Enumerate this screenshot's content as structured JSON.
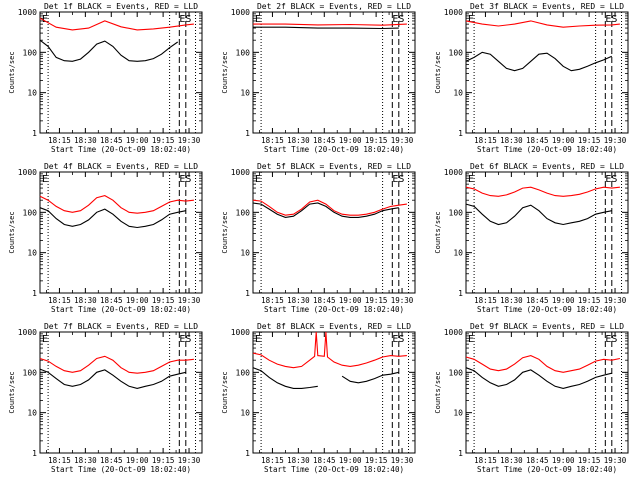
{
  "chart_data": [
    {
      "type": "line",
      "title": "Det 1f BLACK = Events, RED = LLD",
      "xlabel": "Start Time (20-Oct-09 18:02:40)",
      "ylabel": "Counts/sec",
      "ylim": [
        1,
        1000
      ],
      "yscale": "log",
      "x_tick_labels": [
        "18:15",
        "18:30",
        "18:45",
        "19:00",
        "19:15",
        "19:30"
      ],
      "y_tick_labels": [
        "1",
        "10",
        "100",
        "1000"
      ],
      "corner_labels": [
        "E",
        "ES"
      ],
      "series": [
        {
          "color": "#000000",
          "x": [
            0,
            5,
            10,
            15,
            20,
            25,
            30,
            35,
            40,
            45,
            50,
            55,
            60,
            65,
            70,
            75,
            80,
            85,
            90,
            95
          ],
          "y": [
            200,
            140,
            75,
            62,
            60,
            68,
            100,
            160,
            190,
            140,
            85,
            62,
            60,
            62,
            70,
            90,
            130,
            180,
            "",
            ""
          ]
        },
        {
          "color": "#ff0000",
          "x": [
            0,
            10,
            20,
            30,
            40,
            50,
            60,
            70,
            80,
            90,
            95
          ],
          "y": [
            700,
            420,
            360,
            400,
            600,
            430,
            360,
            380,
            420,
            480,
            500
          ]
        }
      ]
    },
    {
      "type": "line",
      "title": "Det 2f BLACK = Events, RED = LLD",
      "xlabel": "Start Time (20-Oct-09 18:02:40)",
      "ylabel": "Counts/sec",
      "ylim": [
        1,
        1000
      ],
      "yscale": "log",
      "x_tick_labels": [
        "18:15",
        "18:30",
        "18:45",
        "19:00",
        "19:15",
        "19:30"
      ],
      "y_tick_labels": [
        "1",
        "10",
        "100",
        "1000"
      ],
      "corner_labels": [
        "E",
        "ES"
      ],
      "series": [
        {
          "color": "#000000",
          "x": [
            0,
            20,
            40,
            60,
            80,
            90
          ],
          "y": [
            420,
            420,
            400,
            400,
            390,
            400
          ]
        },
        {
          "color": "#ff0000",
          "x": [
            0,
            20,
            40,
            60,
            80,
            95
          ],
          "y": [
            500,
            500,
            480,
            490,
            470,
            500
          ]
        }
      ]
    },
    {
      "type": "line",
      "title": "Det 3f BLACK = Events, RED = LLD",
      "xlabel": "Start Time (20-Oct-09 18:02:40)",
      "ylabel": "Counts/sec",
      "ylim": [
        1,
        1000
      ],
      "yscale": "log",
      "x_tick_labels": [
        "18:15",
        "18:30",
        "18:45",
        "19:00",
        "19:15",
        "19:30"
      ],
      "y_tick_labels": [
        "1",
        "10",
        "100",
        "1000"
      ],
      "corner_labels": [
        "E",
        "ES"
      ],
      "series": [
        {
          "color": "#000000",
          "x": [
            0,
            5,
            10,
            15,
            20,
            25,
            30,
            35,
            40,
            45,
            50,
            55,
            60,
            65,
            70,
            75,
            80,
            85,
            90
          ],
          "y": [
            60,
            75,
            100,
            90,
            60,
            40,
            35,
            40,
            60,
            90,
            95,
            70,
            45,
            35,
            38,
            45,
            55,
            65,
            80
          ]
        },
        {
          "color": "#ff0000",
          "x": [
            0,
            10,
            20,
            30,
            40,
            50,
            60,
            70,
            80,
            90,
            95
          ],
          "y": [
            600,
            500,
            450,
            500,
            600,
            480,
            420,
            450,
            470,
            480,
            500
          ]
        }
      ]
    },
    {
      "type": "line",
      "title": "Det 4f BLACK = Events, RED = LLD",
      "xlabel": "Start Time (20-Oct-09 18:02:40)",
      "ylabel": "Counts/sec",
      "ylim": [
        1,
        1000
      ],
      "yscale": "log",
      "x_tick_labels": [
        "18:15",
        "18:30",
        "18:45",
        "19:00",
        "19:15",
        "19:30"
      ],
      "y_tick_labels": [
        "1",
        "10",
        "100",
        "1000"
      ],
      "corner_labels": [
        "E",
        "ES"
      ],
      "series": [
        {
          "color": "#000000",
          "x": [
            0,
            5,
            10,
            15,
            20,
            25,
            30,
            35,
            40,
            45,
            50,
            55,
            60,
            65,
            70,
            75,
            80,
            85,
            90
          ],
          "y": [
            130,
            110,
            70,
            50,
            45,
            50,
            65,
            100,
            120,
            90,
            60,
            45,
            42,
            45,
            50,
            65,
            90,
            100,
            110
          ]
        },
        {
          "color": "#ff0000",
          "x": [
            0,
            5,
            10,
            15,
            20,
            25,
            30,
            35,
            40,
            45,
            50,
            55,
            60,
            65,
            70,
            75,
            80,
            85,
            90,
            95
          ],
          "y": [
            250,
            200,
            140,
            110,
            100,
            110,
            150,
            230,
            260,
            200,
            130,
            100,
            95,
            100,
            110,
            140,
            180,
            200,
            190,
            200
          ]
        }
      ]
    },
    {
      "type": "line",
      "title": "Det 5f BLACK = Events, RED = LLD",
      "xlabel": "Start Time (20-Oct-09 18:02:40)",
      "ylabel": "Counts/sec",
      "ylim": [
        1,
        1000
      ],
      "yscale": "log",
      "x_tick_labels": [
        "18:15",
        "18:30",
        "18:45",
        "19:00",
        "19:15",
        "19:30"
      ],
      "y_tick_labels": [
        "1",
        "10",
        "100",
        "1000"
      ],
      "corner_labels": [
        "E",
        "ES"
      ],
      "series": [
        {
          "color": "#000000",
          "x": [
            0,
            5,
            10,
            15,
            20,
            25,
            30,
            35,
            40,
            45,
            50,
            55,
            60,
            65,
            70,
            75,
            80,
            85,
            90
          ],
          "y": [
            170,
            160,
            120,
            90,
            75,
            80,
            110,
            160,
            170,
            140,
            100,
            80,
            75,
            75,
            80,
            90,
            110,
            120,
            130
          ]
        },
        {
          "color": "#ff0000",
          "x": [
            0,
            5,
            10,
            15,
            20,
            25,
            30,
            35,
            40,
            45,
            50,
            55,
            60,
            65,
            70,
            75,
            80,
            85,
            90,
            95
          ],
          "y": [
            200,
            190,
            140,
            100,
            85,
            90,
            120,
            180,
            200,
            160,
            110,
            90,
            85,
            85,
            90,
            100,
            120,
            140,
            150,
            160
          ]
        }
      ]
    },
    {
      "type": "line",
      "title": "Det 6f BLACK = Events, RED = LLD",
      "xlabel": "Start Time (20-Oct-09 18:02:40)",
      "ylabel": "Counts/sec",
      "ylim": [
        1,
        1000
      ],
      "yscale": "log",
      "x_tick_labels": [
        "18:15",
        "18:30",
        "18:45",
        "19:00",
        "19:15",
        "19:30"
      ],
      "y_tick_labels": [
        "1",
        "10",
        "100",
        "1000"
      ],
      "corner_labels": [
        "E",
        "ES"
      ],
      "series": [
        {
          "color": "#000000",
          "x": [
            0,
            5,
            10,
            15,
            20,
            25,
            30,
            35,
            40,
            45,
            50,
            55,
            60,
            65,
            70,
            75,
            80,
            85,
            90
          ],
          "y": [
            160,
            140,
            90,
            60,
            50,
            55,
            80,
            130,
            150,
            110,
            70,
            55,
            50,
            55,
            60,
            70,
            90,
            100,
            110
          ]
        },
        {
          "color": "#ff0000",
          "x": [
            0,
            5,
            10,
            15,
            20,
            25,
            30,
            35,
            40,
            45,
            50,
            55,
            60,
            65,
            70,
            75,
            80,
            85,
            90,
            95
          ],
          "y": [
            420,
            380,
            300,
            260,
            250,
            270,
            320,
            400,
            420,
            360,
            300,
            260,
            250,
            260,
            280,
            320,
            380,
            420,
            400,
            420
          ]
        }
      ]
    },
    {
      "type": "line",
      "title": "Det 7f BLACK = Events, RED = LLD",
      "xlabel": "Start Time (20-Oct-09 18:02:40)",
      "ylabel": "Counts/sec",
      "ylim": [
        1,
        1000
      ],
      "yscale": "log",
      "x_tick_labels": [
        "18:15",
        "18:30",
        "18:45",
        "19:00",
        "19:15",
        "19:30"
      ],
      "y_tick_labels": [
        "1",
        "10",
        "100",
        "1000"
      ],
      "corner_labels": [
        "E",
        "ES"
      ],
      "series": [
        {
          "color": "#000000",
          "x": [
            0,
            5,
            10,
            15,
            20,
            25,
            30,
            35,
            40,
            45,
            50,
            55,
            60,
            65,
            70,
            75,
            80,
            85,
            90
          ],
          "y": [
            120,
            100,
            70,
            50,
            45,
            50,
            65,
            100,
            115,
            85,
            60,
            45,
            40,
            45,
            50,
            60,
            80,
            90,
            100
          ]
        },
        {
          "color": "#ff0000",
          "x": [
            0,
            5,
            10,
            15,
            20,
            25,
            30,
            35,
            40,
            45,
            50,
            55,
            60,
            65,
            70,
            75,
            80,
            85,
            90,
            95
          ],
          "y": [
            220,
            190,
            140,
            110,
            100,
            110,
            150,
            220,
            250,
            200,
            130,
            100,
            95,
            100,
            110,
            140,
            180,
            200,
            200,
            210
          ]
        }
      ]
    },
    {
      "type": "line",
      "title": "Det 8f BLACK = Events, RED = LLD",
      "xlabel": "Start Time (20-Oct-09 18:02:40)",
      "ylabel": "Counts/sec",
      "ylim": [
        1,
        1000
      ],
      "yscale": "log",
      "x_tick_labels": [
        "18:15",
        "18:30",
        "18:45",
        "19:00",
        "19:15",
        "19:30"
      ],
      "y_tick_labels": [
        "1",
        "10",
        "100",
        "1000"
      ],
      "corner_labels": [
        "E",
        "ES"
      ],
      "series": [
        {
          "color": "#000000",
          "x": [
            0,
            5,
            10,
            15,
            20,
            25,
            30,
            35,
            40,
            "",
            55,
            60,
            65,
            70,
            75,
            80,
            85,
            90
          ],
          "y": [
            130,
            110,
            75,
            55,
            45,
            40,
            40,
            42,
            45,
            "",
            80,
            60,
            55,
            60,
            70,
            85,
            90,
            100
          ]
        },
        {
          "color": "#ff0000",
          "x": [
            0,
            5,
            10,
            15,
            20,
            25,
            30,
            35,
            38,
            39,
            40,
            44,
            45,
            46,
            50,
            55,
            60,
            65,
            70,
            75,
            80,
            85,
            90,
            95
          ],
          "y": [
            300,
            270,
            200,
            160,
            140,
            130,
            140,
            200,
            250,
            1000,
            260,
            250,
            1000,
            240,
            180,
            150,
            140,
            150,
            170,
            200,
            240,
            260,
            250,
            260
          ]
        }
      ]
    },
    {
      "type": "line",
      "title": "Det 9f BLACK = Events, RED = LLD",
      "xlabel": "Start Time (20-Oct-09 18:02:40)",
      "ylabel": "Counts/sec",
      "ylim": [
        1,
        1000
      ],
      "yscale": "log",
      "x_tick_labels": [
        "18:15",
        "18:30",
        "18:45",
        "19:00",
        "19:15",
        "19:30"
      ],
      "y_tick_labels": [
        "1",
        "10",
        "100",
        "1000"
      ],
      "corner_labels": [
        "E",
        "ES"
      ],
      "series": [
        {
          "color": "#000000",
          "x": [
            0,
            5,
            10,
            15,
            20,
            25,
            30,
            35,
            40,
            45,
            50,
            55,
            60,
            65,
            70,
            75,
            80,
            85,
            90
          ],
          "y": [
            130,
            110,
            75,
            55,
            45,
            50,
            65,
            100,
            115,
            85,
            60,
            45,
            40,
            45,
            50,
            60,
            75,
            85,
            95
          ]
        },
        {
          "color": "#ff0000",
          "x": [
            0,
            5,
            10,
            15,
            20,
            25,
            30,
            35,
            40,
            45,
            50,
            55,
            60,
            65,
            70,
            75,
            80,
            85,
            90,
            95
          ],
          "y": [
            240,
            210,
            160,
            120,
            110,
            120,
            160,
            230,
            260,
            210,
            140,
            110,
            100,
            110,
            120,
            150,
            190,
            210,
            200,
            220
          ]
        }
      ]
    }
  ]
}
